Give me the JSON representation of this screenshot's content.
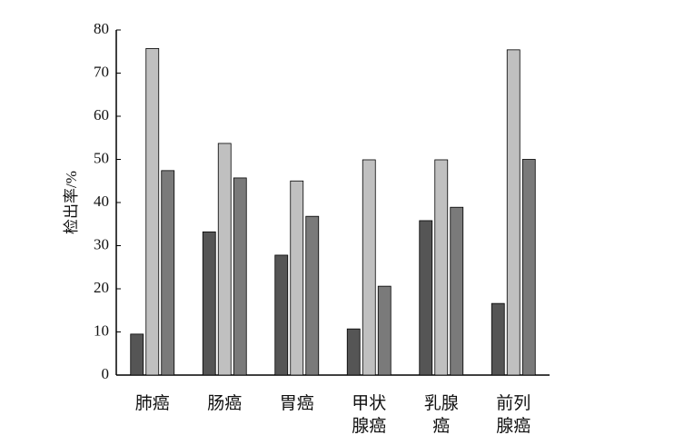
{
  "chart_data": {
    "type": "bar",
    "ylabel": "检出率/%",
    "categories": [
      "肺癌",
      "肠癌",
      "胃癌",
      "甲状腺癌",
      "乳腺癌",
      "前列腺癌"
    ],
    "series": [
      {
        "color": "#555555",
        "values": [
          9.5,
          33.2,
          27.8,
          10.7,
          35.8,
          16.6
        ]
      },
      {
        "color": "#c0c0c0",
        "values": [
          75.7,
          53.7,
          45,
          49.9,
          49.9,
          75.4
        ]
      },
      {
        "color": "#7a7a7a",
        "values": [
          47.4,
          45.7,
          36.8,
          20.6,
          38.9,
          50
        ]
      }
    ],
    "ylim": [
      0,
      80
    ],
    "yticks": [
      0,
      10,
      20,
      30,
      40,
      50,
      60,
      70,
      80
    ]
  }
}
